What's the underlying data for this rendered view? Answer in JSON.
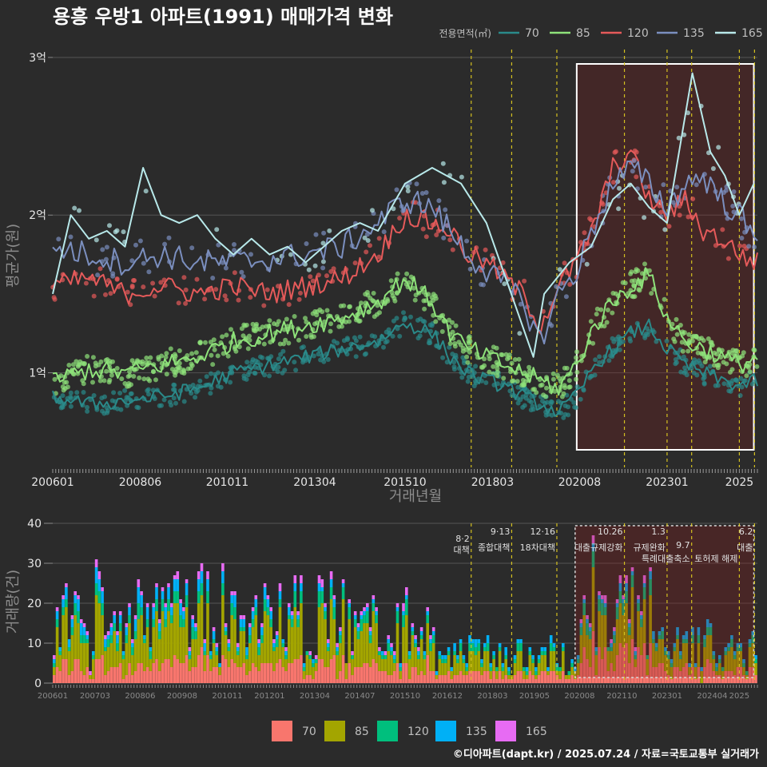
{
  "chart_data": [
    {
      "type": "line",
      "title": "용흥 우방1 아파트(1991) 매매가격 변화",
      "xlabel": "거래년월",
      "ylabel": "평균가(원)",
      "y_ticks": [
        {
          "v": 1.0,
          "label": "1억"
        },
        {
          "v": 2.0,
          "label": "2억"
        },
        {
          "v": 3.0,
          "label": "3억"
        }
      ],
      "ylim": [
        0.4,
        3.05
      ],
      "x_ticks": [
        {
          "t": 2006.0,
          "label": "200601"
        },
        {
          "t": 2008.42,
          "label": "200806"
        },
        {
          "t": 2010.83,
          "label": "201011"
        },
        {
          "t": 2013.25,
          "label": "201304"
        },
        {
          "t": 2015.75,
          "label": "201510"
        },
        {
          "t": 2018.17,
          "label": "201803"
        },
        {
          "t": 2020.58,
          "label": "202008"
        },
        {
          "t": 2023.0,
          "label": "202301"
        },
        {
          "t": 2025.0,
          "label": "2025"
        }
      ],
      "xlim": [
        2006.0,
        2025.5
      ],
      "legend_title": "전용면적(㎡)",
      "series": [
        {
          "name": "70",
          "color": "#2a8a8a",
          "x": [
            2006.0,
            2007.0,
            2008.0,
            2009.0,
            2010.0,
            2011.0,
            2012.0,
            2013.0,
            2014.0,
            2015.0,
            2015.75,
            2016.5,
            2017.0,
            2017.5,
            2018.0,
            2018.5,
            2019.0,
            2019.5,
            2020.0,
            2020.5,
            2021.0,
            2021.5,
            2022.0,
            2022.5,
            2023.0,
            2023.5,
            2024.0,
            2024.5,
            2025.0,
            2025.5
          ],
          "values": [
            0.85,
            0.8,
            0.82,
            0.85,
            0.9,
            1.0,
            1.05,
            1.1,
            1.15,
            1.2,
            1.32,
            1.25,
            1.1,
            1.0,
            0.95,
            0.92,
            0.85,
            0.8,
            0.75,
            0.85,
            1.05,
            1.15,
            1.25,
            1.3,
            1.15,
            1.05,
            1.0,
            0.95,
            0.92,
            0.95
          ]
        },
        {
          "name": "85",
          "color": "#8ee27a",
          "x": [
            2006.0,
            2007.0,
            2008.0,
            2009.0,
            2010.0,
            2011.0,
            2012.0,
            2013.0,
            2014.0,
            2015.0,
            2015.75,
            2016.5,
            2017.0,
            2017.5,
            2018.0,
            2018.5,
            2019.0,
            2019.5,
            2020.0,
            2020.5,
            2021.0,
            2021.5,
            2022.0,
            2022.5,
            2023.0,
            2023.5,
            2024.0,
            2024.5,
            2025.0,
            2025.5
          ],
          "values": [
            0.95,
            1.02,
            1.0,
            1.05,
            1.1,
            1.2,
            1.25,
            1.3,
            1.35,
            1.45,
            1.6,
            1.45,
            1.25,
            1.15,
            1.1,
            1.05,
            1.0,
            0.95,
            0.9,
            1.05,
            1.3,
            1.45,
            1.55,
            1.62,
            1.35,
            1.2,
            1.15,
            1.1,
            1.05,
            1.1
          ]
        },
        {
          "name": "120",
          "color": "#e55a5a",
          "x": [
            2006.0,
            2007.0,
            2008.0,
            2009.0,
            2010.0,
            2011.0,
            2012.0,
            2013.0,
            2014.0,
            2015.0,
            2015.75,
            2016.5,
            2017.0,
            2017.5,
            2018.0,
            2018.5,
            2019.0,
            2019.5,
            2020.0,
            2020.5,
            2021.0,
            2021.5,
            2022.0,
            2022.5,
            2023.0,
            2023.5,
            2024.0,
            2024.5,
            2025.0,
            2025.5
          ],
          "values": [
            1.55,
            1.6,
            1.5,
            1.55,
            1.5,
            1.55,
            1.5,
            1.55,
            1.6,
            1.75,
            2.0,
            1.95,
            1.9,
            1.75,
            1.7,
            1.6,
            1.5,
            1.3,
            1.55,
            1.7,
            1.95,
            2.3,
            2.4,
            2.1,
            2.0,
            2.1,
            1.9,
            1.85,
            1.75,
            1.7
          ]
        },
        {
          "name": "135",
          "color": "#7b8fbf",
          "x": [
            2006.0,
            2007.0,
            2008.0,
            2009.0,
            2010.0,
            2011.0,
            2012.0,
            2013.0,
            2014.0,
            2015.0,
            2015.75,
            2016.5,
            2017.0,
            2017.5,
            2018.0,
            2018.5,
            2019.0,
            2019.5,
            2020.0,
            2020.5,
            2021.0,
            2021.5,
            2022.0,
            2022.5,
            2023.0,
            2023.5,
            2024.0,
            2024.5,
            2025.0,
            2025.5
          ],
          "values": [
            1.8,
            1.75,
            1.7,
            1.75,
            1.7,
            1.7,
            1.72,
            1.75,
            1.8,
            1.95,
            2.1,
            2.05,
            1.9,
            1.75,
            1.65,
            1.55,
            1.45,
            1.2,
            1.5,
            1.65,
            1.95,
            2.2,
            2.3,
            2.2,
            2.05,
            2.2,
            2.25,
            2.1,
            2.0,
            1.8
          ]
        },
        {
          "name": "165",
          "color": "#b8e9ea",
          "x": [
            2006.0,
            2006.5,
            2007.0,
            2007.5,
            2008.0,
            2008.5,
            2009.0,
            2009.5,
            2010.0,
            2010.5,
            2011.0,
            2011.5,
            2012.0,
            2012.5,
            2013.0,
            2013.5,
            2014.0,
            2014.5,
            2015.0,
            2015.75,
            2016.5,
            2017.3,
            2018.0,
            2019.3,
            2019.6,
            2020.3,
            2020.9,
            2021.5,
            2022.0,
            2022.5,
            2023.0,
            2023.7,
            2024.2,
            2024.6,
            2025.0,
            2025.4
          ],
          "values": [
            1.5,
            2.0,
            1.85,
            1.9,
            1.8,
            2.3,
            2.0,
            1.95,
            2.0,
            1.85,
            1.75,
            1.85,
            1.75,
            1.8,
            1.7,
            1.8,
            1.9,
            1.95,
            1.9,
            2.2,
            2.3,
            2.2,
            1.95,
            1.1,
            1.5,
            1.7,
            1.8,
            2.1,
            2.2,
            2.05,
            1.95,
            2.9,
            2.4,
            2.25,
            2.0,
            2.2
          ]
        }
      ]
    },
    {
      "type": "bar",
      "ylabel": "거래량(건)",
      "y_ticks": [
        0,
        10,
        20,
        30,
        40
      ],
      "ylim": [
        0,
        40
      ],
      "x_ticks": [
        {
          "t": 2006.0,
          "label": "200601"
        },
        {
          "t": 2007.17,
          "label": "200703"
        },
        {
          "t": 2008.42,
          "label": "200806"
        },
        {
          "t": 2009.58,
          "label": "200908"
        },
        {
          "t": 2010.83,
          "label": "201011"
        },
        {
          "t": 2012.0,
          "label": "201201"
        },
        {
          "t": 2013.25,
          "label": "201304"
        },
        {
          "t": 2014.5,
          "label": "201407"
        },
        {
          "t": 2015.75,
          "label": "201510"
        },
        {
          "t": 2016.92,
          "label": "201612"
        },
        {
          "t": 2018.17,
          "label": "201803"
        },
        {
          "t": 2019.33,
          "label": "201905"
        },
        {
          "t": 2020.58,
          "label": "202008"
        },
        {
          "t": 2021.75,
          "label": "202110"
        },
        {
          "t": 2023.0,
          "label": "202301"
        },
        {
          "t": 2024.25,
          "label": "202404"
        },
        {
          "t": 2025.0,
          "label": "2025"
        }
      ],
      "xlim": [
        2006.0,
        2025.5
      ],
      "stack_keys": [
        "70",
        "85",
        "120",
        "135",
        "165"
      ],
      "colors": [
        "#f8766d",
        "#a3a500",
        "#00bf7d",
        "#00b0f6",
        "#e76bf3"
      ],
      "periods": [
        {
          "start": 2006.0,
          "end": 2010.0,
          "counts": [
            4,
            8,
            2,
            2,
            1
          ]
        },
        {
          "start": 2010.0,
          "end": 2012.5,
          "counts": [
            5,
            9,
            2,
            2,
            1
          ]
        },
        {
          "start": 2012.5,
          "end": 2015.0,
          "counts": [
            4,
            8,
            2,
            1,
            1
          ]
        },
        {
          "start": 2015.0,
          "end": 2016.5,
          "counts": [
            4,
            7,
            2,
            1,
            1
          ]
        },
        {
          "start": 2016.5,
          "end": 2020.5,
          "counts": [
            2,
            3,
            1,
            1,
            0
          ]
        },
        {
          "start": 2020.5,
          "end": 2022.5,
          "counts": [
            6,
            7,
            2,
            1,
            1
          ]
        },
        {
          "start": 2022.5,
          "end": 2025.5,
          "counts": [
            3,
            4,
            1,
            1,
            0
          ]
        }
      ],
      "peaks": [
        {
          "t": 2020.95,
          "total": 39
        },
        {
          "t": 2021.05,
          "total": 25
        }
      ]
    }
  ],
  "events": [
    {
      "t": 2017.58,
      "date": "8·2",
      "name": "대책"
    },
    {
      "t": 2018.7,
      "date": "9·13",
      "name": "종합대책"
    },
    {
      "t": 2019.95,
      "date": "12·16",
      "name": "18차대책"
    },
    {
      "t": 2021.82,
      "date": "10.26",
      "name": "대출규제강화"
    },
    {
      "t": 2023.0,
      "date": "1.3",
      "name": "규제완화"
    },
    {
      "t": 2023.68,
      "date": "9.7",
      "name": "특례대출축소"
    },
    {
      "t": 2025.0,
      "date": "",
      "name": "토허제 해제"
    },
    {
      "t": 2025.42,
      "date": "6.2",
      "name": "대출"
    }
  ],
  "highlight": {
    "start": 2020.5,
    "end": 2025.4
  },
  "footer": "©디아파트(dapt.kr) / 2025.07.24 / 자료=국토교통부 실거래가"
}
